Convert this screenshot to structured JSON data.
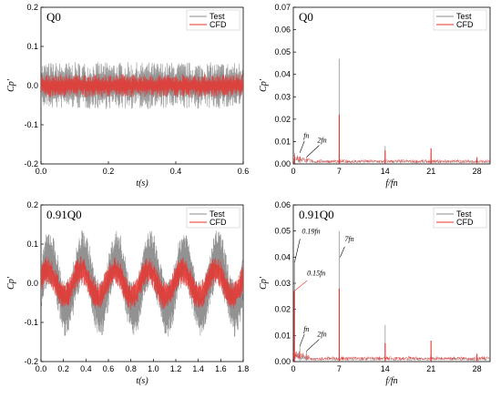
{
  "chart_data": [
    {
      "type": "line",
      "title": "Q0",
      "xlabel": "t(s)",
      "ylabel": "Cp'",
      "xlim": [
        0,
        0.6
      ],
      "ylim": [
        -0.2,
        0.2
      ],
      "xticks": [
        "0.0",
        "0.2",
        "0.4",
        "0.6"
      ],
      "yticks": [
        "-0.2",
        "-0.1",
        "0.0",
        "0.1",
        "0.2"
      ],
      "legend": "top-right",
      "series": [
        {
          "name": "Test",
          "color": "#8c8c8c",
          "envelope": {
            "mean": 0.0,
            "amplitude": 0.06
          }
        },
        {
          "name": "CFD",
          "color": "#e8322e",
          "envelope": {
            "mean": 0.0,
            "amplitude": 0.03
          }
        }
      ]
    },
    {
      "type": "line",
      "title": "Q0",
      "xlabel": "f/fn",
      "ylabel": "Cp'",
      "xlim": [
        0,
        30
      ],
      "ylim": [
        0,
        0.07
      ],
      "xticks": [
        "0",
        "7",
        "14",
        "21",
        "28"
      ],
      "yticks": [
        "0.00",
        "0.01",
        "0.02",
        "0.03",
        "0.04",
        "0.05",
        "0.06",
        "0.07"
      ],
      "legend": "top-right",
      "series": [
        {
          "name": "Test",
          "color": "#8c8c8c",
          "peaks": [
            {
              "x": 0.2,
              "y": 0.005
            },
            {
              "x": 1,
              "y": 0.003
            },
            {
              "x": 2,
              "y": 0.002
            },
            {
              "x": 7,
              "y": 0.047
            },
            {
              "x": 14,
              "y": 0.008
            },
            {
              "x": 21,
              "y": 0.005
            },
            {
              "x": 28,
              "y": 0.002
            }
          ]
        },
        {
          "name": "CFD",
          "color": "#e8322e",
          "peaks": [
            {
              "x": 0.2,
              "y": 0.003
            },
            {
              "x": 7,
              "y": 0.022
            },
            {
              "x": 14,
              "y": 0.006
            },
            {
              "x": 21,
              "y": 0.007
            },
            {
              "x": 28,
              "y": 0.003
            }
          ]
        }
      ],
      "annotations": [
        {
          "text": "fn",
          "x": 1,
          "y": 0.005
        },
        {
          "text": "2fn",
          "x": 2,
          "y": 0.003
        }
      ]
    },
    {
      "type": "line",
      "title": "0.91Q0",
      "xlabel": "t(s)",
      "ylabel": "Cp'",
      "xlim": [
        0,
        1.8
      ],
      "ylim": [
        -0.2,
        0.2
      ],
      "xticks": [
        "0.0",
        "0.2",
        "0.4",
        "0.6",
        "0.8",
        "1.0",
        "1.2",
        "1.4",
        "1.6",
        "1.8"
      ],
      "yticks": [
        "-0.2",
        "-0.1",
        "0.0",
        "0.1",
        "0.2"
      ],
      "legend": "top-right",
      "series": [
        {
          "name": "Test",
          "color": "#8c8c8c",
          "envelope": {
            "mean": 0.0,
            "amplitude": 0.12,
            "low_freq_period_s": 0.3
          }
        },
        {
          "name": "CFD",
          "color": "#e8322e",
          "envelope": {
            "mean": 0.0,
            "amplitude": 0.06,
            "low_freq_period_s": 0.3
          }
        }
      ]
    },
    {
      "type": "line",
      "title": "0.91Q0",
      "xlabel": "f/fn",
      "ylabel": "Cp'",
      "xlim": [
        0,
        30
      ],
      "ylim": [
        0,
        0.06
      ],
      "xticks": [
        "0",
        "7",
        "14",
        "21",
        "28"
      ],
      "yticks": [
        "0.00",
        "0.01",
        "0.02",
        "0.03",
        "0.04",
        "0.05",
        "0.06"
      ],
      "legend": "top-right",
      "series": [
        {
          "name": "Test",
          "color": "#8c8c8c",
          "peaks": [
            {
              "x": 0.19,
              "y": 0.038
            },
            {
              "x": 1,
              "y": 0.006
            },
            {
              "x": 2,
              "y": 0.004
            },
            {
              "x": 7,
              "y": 0.05
            },
            {
              "x": 14,
              "y": 0.014
            },
            {
              "x": 21,
              "y": 0.003
            },
            {
              "x": 28,
              "y": 0.001
            }
          ]
        },
        {
          "name": "CFD",
          "color": "#e8322e",
          "peaks": [
            {
              "x": 0.15,
              "y": 0.027
            },
            {
              "x": 7,
              "y": 0.028
            },
            {
              "x": 14,
              "y": 0.007
            },
            {
              "x": 21,
              "y": 0.008
            },
            {
              "x": 28,
              "y": 0.003
            }
          ]
        }
      ],
      "annotations": [
        {
          "text": "0.19fn",
          "x": 0.19,
          "y": 0.038
        },
        {
          "text": "0.15fn",
          "x": 0.15,
          "y": 0.027
        },
        {
          "text": "7fn",
          "x": 7,
          "y": 0.04
        },
        {
          "text": "fn",
          "x": 1,
          "y": 0.006
        },
        {
          "text": "2fn",
          "x": 2,
          "y": 0.004
        }
      ]
    }
  ]
}
